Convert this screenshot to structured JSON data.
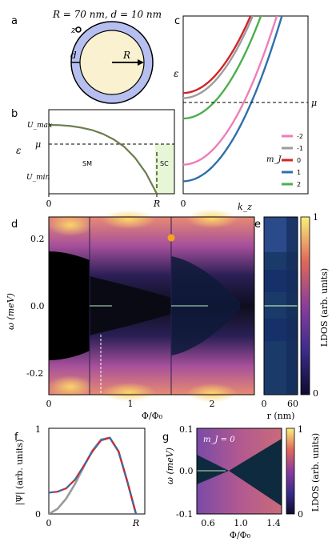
{
  "figure": {
    "panel_letters": {
      "a": "a",
      "b": "b",
      "c": "c",
      "d": "d",
      "e": "e",
      "f": "f",
      "g": "g"
    },
    "a": {
      "title": "R = 70 nm, d = 10 nm",
      "z": "z",
      "d": "d",
      "R": "R"
    },
    "b": {
      "ylabel": "ε",
      "yticks": [
        "U_max",
        "μ",
        "U_min"
      ],
      "xticks": [
        "0",
        "R"
      ],
      "region_sm": "SM",
      "region_sc": "SC"
    },
    "c": {
      "ylabel": "ε",
      "xtick0": "0",
      "xlabel": "k_z",
      "mu": "μ",
      "legend_title": "m_J"
    },
    "d": {
      "xlabel": "Φ/Φ₀",
      "ylabel": "ω (meV)",
      "yticks": [
        "0.2",
        "0.0",
        "-0.2"
      ],
      "xticks": [
        "0",
        "1",
        "2"
      ]
    },
    "e": {
      "xlabel": "r (nm)",
      "xticks": [
        "0",
        "60"
      ],
      "colorbar_label": "LDOS (arb. units)",
      "cbar_ticks": [
        "1",
        "0"
      ]
    },
    "f": {
      "ylabel": "|Ψ| (arb. units)",
      "yticks": [
        "1",
        "0"
      ],
      "xticks": [
        "0",
        "R"
      ]
    },
    "g": {
      "annotation": "m_J = 0",
      "ylabel": "ω (meV)",
      "xlabel": "Φ/Φ₀",
      "yticks": [
        "0.1",
        "0.0",
        "-0.1"
      ],
      "xticks": [
        "0.6",
        "1.0",
        "1.4"
      ],
      "colorbar_label": "LDOS (arb. units)",
      "cbar_ticks": [
        "1",
        "0"
      ]
    }
  },
  "chart_data": [
    {
      "panel": "b",
      "type": "line",
      "xlabel": "",
      "ylabel": "ε",
      "x_ticks": [
        "0",
        "R"
      ],
      "y_ticks": [
        "U_max",
        "μ",
        "U_min"
      ],
      "series": [
        {
          "x": [
            0,
            0.1,
            0.2,
            0.3,
            0.4,
            0.5,
            0.6,
            0.7,
            0.8,
            0.9,
            1.0
          ],
          "y": [
            1.0,
            0.996,
            0.984,
            0.96,
            0.925,
            0.87,
            0.79,
            0.68,
            0.52,
            0.3,
            0.0
          ]
        }
      ],
      "mu_level": 0.57,
      "colors": {
        "line": "#6b7d4e",
        "sc_region": "#e6f6d6"
      }
    },
    {
      "panel": "c",
      "type": "line",
      "xlabel": "k_z",
      "ylabel": "ε",
      "x_ticks": [
        "0"
      ],
      "legend": "bottom-right",
      "legend_title": "m_J",
      "series": [
        {
          "name": "-2",
          "color": "#ee7fb5",
          "offset": 0.8
        },
        {
          "name": "-1",
          "color": "#9c9c9c",
          "offset": 0.28
        },
        {
          "name": "0",
          "color": "#d1242b",
          "offset": 0.24
        },
        {
          "name": "1",
          "color": "#2f6fae",
          "offset": 0.93
        },
        {
          "name": "2",
          "color": "#4caf4c",
          "offset": 0.44
        }
      ],
      "mu_level": 0.55
    },
    {
      "panel": "d",
      "type": "heatmap",
      "xlabel": "Φ/Φ₀",
      "ylabel": "ω (meV)",
      "xlim": [
        0,
        2.5
      ],
      "ylim": [
        -0.25,
        0.25
      ],
      "x_ticks": [
        0,
        1,
        2
      ],
      "y_ticks": [
        0.2,
        0.0,
        -0.2
      ],
      "colormap": "plasma",
      "lobe_boundaries": [
        0.5,
        1.5
      ],
      "marker_phi": 1.5,
      "marker_color": "#f5a31a",
      "dashed_marker_phi": 0.63
    },
    {
      "panel": "e",
      "type": "heatmap",
      "xlabel": "r (nm)",
      "x_ticks": [
        0,
        60
      ],
      "colorbar": {
        "label": "LDOS (arb. units)",
        "ticks": [
          "0",
          "1"
        ]
      }
    },
    {
      "panel": "f",
      "type": "line",
      "ylabel": "|Ψ| (arb. units)",
      "x_ticks": [
        "0",
        "R"
      ],
      "y_ticks": [
        0,
        1
      ],
      "series": [
        {
          "color": "#9a9a9a",
          "x": [
            0,
            0.1,
            0.2,
            0.3,
            0.4,
            0.5,
            0.6,
            0.7,
            0.8,
            0.9,
            1.0
          ],
          "y": [
            0.0,
            0.06,
            0.18,
            0.35,
            0.55,
            0.74,
            0.87,
            0.89,
            0.73,
            0.38,
            0.0
          ]
        },
        {
          "color": "#d1242b",
          "x": [
            0,
            0.1,
            0.2,
            0.3,
            0.4,
            0.5,
            0.6,
            0.7,
            0.8,
            0.9,
            1.0
          ],
          "y": [
            0.25,
            0.26,
            0.3,
            0.4,
            0.56,
            0.73,
            0.86,
            0.89,
            0.73,
            0.38,
            0.0
          ]
        },
        {
          "color": "#2f6fae",
          "x": [
            0,
            0.1,
            0.2,
            0.3,
            0.4,
            0.5,
            0.6,
            0.7,
            0.8,
            0.9,
            1.0
          ],
          "y": [
            0.25,
            0.26,
            0.3,
            0.4,
            0.56,
            0.73,
            0.86,
            0.89,
            0.73,
            0.38,
            0.0
          ]
        }
      ]
    },
    {
      "panel": "g",
      "type": "heatmap",
      "xlabel": "Φ/Φ₀",
      "ylabel": "ω (meV)",
      "xlim": [
        0.5,
        1.5
      ],
      "ylim": [
        -0.1,
        0.1
      ],
      "x_ticks": [
        0.6,
        1.0,
        1.4
      ],
      "y_ticks": [
        0.1,
        0.0,
        -0.1
      ],
      "crossing_phi": 0.8,
      "annotation": "m_J = 0",
      "colorbar": {
        "label": "LDOS (arb. units)",
        "ticks": [
          "0",
          "1"
        ]
      }
    }
  ]
}
